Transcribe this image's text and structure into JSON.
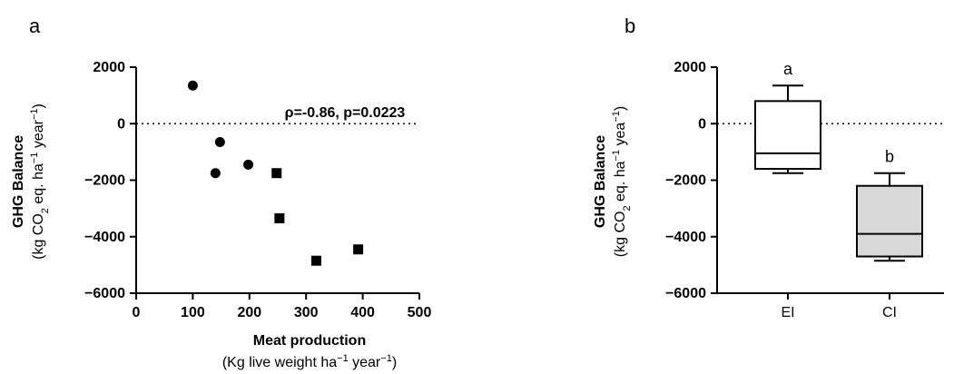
{
  "chart_data": [
    {
      "type": "scatter",
      "panel_label": "a",
      "xlabel": "Meat production",
      "xlabel_unit": [
        "(Kg live weight ha",
        "−1",
        " year",
        "−1",
        ")"
      ],
      "ylabel": "GHG Balance",
      "ylabel_unit": [
        "(kg CO",
        "2",
        " eq. ha",
        "−1",
        " year",
        "−1",
        ")"
      ],
      "xlim": [
        0,
        500
      ],
      "ylim": [
        -6000,
        2000
      ],
      "xticks": [
        0,
        100,
        200,
        300,
        400,
        500
      ],
      "yticks": [
        2000,
        0,
        -2000,
        -4000,
        -6000
      ],
      "xtick_labels": [
        "0",
        "100",
        "200",
        "300",
        "400",
        "500"
      ],
      "ytick_labels": [
        "2000",
        "0",
        "−2000",
        "−4000",
        "−6000"
      ],
      "reference_line_y": 0,
      "annotation": "ρ=-0.86, p=0.0223",
      "series": [
        {
          "marker": "circle",
          "points": [
            [
              100,
              1350
            ],
            [
              148,
              -650
            ],
            [
              140,
              -1750
            ],
            [
              198,
              -1450
            ]
          ]
        },
        {
          "marker": "square",
          "points": [
            [
              248,
              -1750
            ],
            [
              253,
              -3350
            ],
            [
              318,
              -4850
            ],
            [
              392,
              -4450
            ]
          ]
        }
      ]
    },
    {
      "type": "box",
      "panel_label": "b",
      "ylabel": "GHG Balance",
      "ylabel_unit": [
        "(kg CO",
        "2",
        " eq. ha",
        "−1",
        " yea",
        "−1",
        ")"
      ],
      "ylim": [
        -6000,
        2000
      ],
      "yticks": [
        2000,
        0,
        -2000,
        -4000,
        -6000
      ],
      "ytick_labels": [
        "2000",
        "0",
        "−2000",
        "−4000",
        "−6000"
      ],
      "reference_line_y": 0,
      "categories": [
        "EI",
        "CI"
      ],
      "boxes": [
        {
          "name": "EI",
          "min": -1750,
          "q1": -1600,
          "median": -1050,
          "q3": 800,
          "max": 1350,
          "fill": "#ffffff",
          "letter": "a"
        },
        {
          "name": "CI",
          "min": -4850,
          "q1": -4700,
          "median": -3900,
          "q3": -2200,
          "max": -1750,
          "fill": "#d9d9d9",
          "letter": "b"
        }
      ]
    }
  ]
}
